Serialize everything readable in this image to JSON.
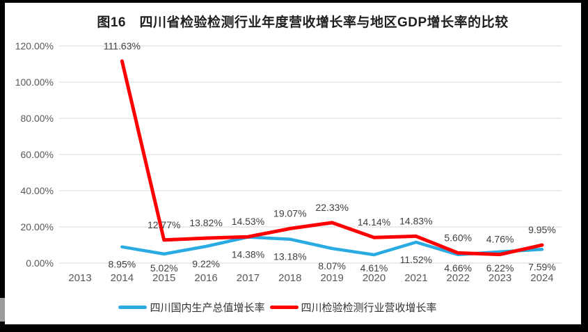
{
  "title": "图16　四川省检验检测行业年度营收增长率与地区GDP增长率的比较",
  "colors": {
    "frame": "#000000",
    "background": "#ffffff",
    "gridline": "#d9d9d9",
    "axis_label": "#595959",
    "data_label": "#404040",
    "gdp_line": "#29abe2",
    "revenue_line": "#ff0000"
  },
  "chart_data": {
    "type": "line",
    "title": "图16　四川省检验检测行业年度营收增长率与地区GDP增长率的比较",
    "categories": [
      "2013",
      "2014",
      "2015",
      "2016",
      "2017",
      "2018",
      "2019",
      "2020",
      "2021",
      "2022",
      "2023",
      "2024"
    ],
    "series": [
      {
        "name": "四川国内生产总值增长率",
        "color": "#29abe2",
        "label_position": "below",
        "values": [
          null,
          8.95,
          5.02,
          9.22,
          14.38,
          13.18,
          8.07,
          4.61,
          11.52,
          4.66,
          6.22,
          7.59
        ],
        "labels": [
          "",
          "8.95%",
          "5.02%",
          "9.22%",
          "14.38%",
          "13.18%",
          "8.07%",
          "4.61%",
          "11.52%",
          "4.66%",
          "6.22%",
          "7.59%"
        ]
      },
      {
        "name": "四川检验检测行业营收增长率",
        "color": "#ff0000",
        "label_position": "above",
        "values": [
          null,
          111.63,
          12.77,
          13.82,
          14.53,
          19.07,
          22.33,
          14.14,
          14.83,
          5.6,
          4.76,
          9.95
        ],
        "labels": [
          "",
          "111.63%",
          "12.77%",
          "13.82%",
          "14.53%",
          "19.07%",
          "22.33%",
          "14.14%",
          "14.83%",
          "5.60%",
          "4.76%",
          "9.95%"
        ]
      }
    ],
    "y_axis": {
      "min": 0,
      "max": 120,
      "step": 20,
      "tick_labels": [
        "0.00%",
        "20.00%",
        "40.00%",
        "60.00%",
        "80.00%",
        "100.00%",
        "120.00%"
      ]
    },
    "x_axis_label": "",
    "y_axis_label": "",
    "grid": true,
    "data_labels": true,
    "legend_position": "bottom"
  }
}
